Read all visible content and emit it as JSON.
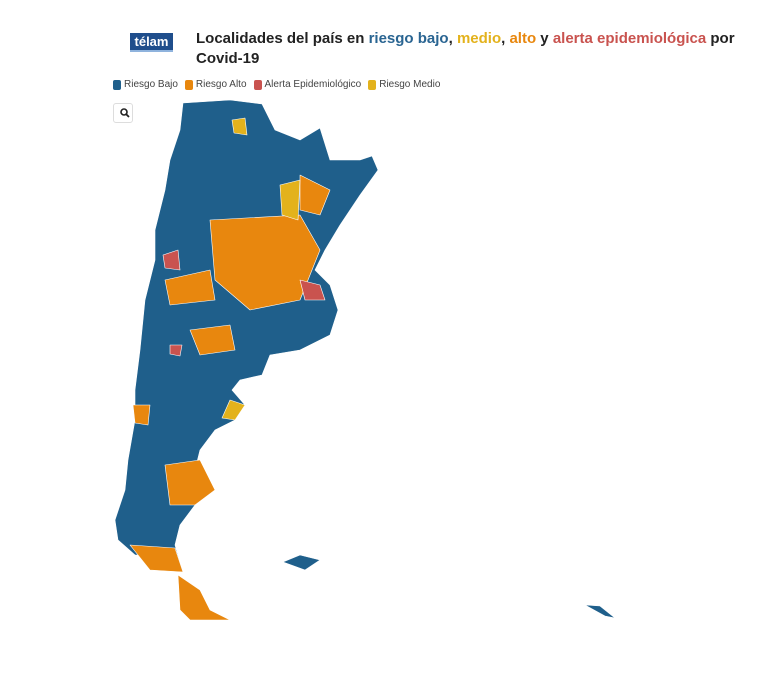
{
  "header": {
    "logo": "télam",
    "title": [
      {
        "text": "Localidades del país en "
      },
      {
        "text": "riesgo bajo",
        "color": "#2a6592"
      },
      {
        "text": ", "
      },
      {
        "text": "medio",
        "color": "#e3b21c"
      },
      {
        "text": ", "
      },
      {
        "text": "alto",
        "color": "#e8870e"
      },
      {
        "text": " y "
      },
      {
        "text": "alerta epidemiológica",
        "color": "#c9534f"
      },
      {
        "text": " por Covid-19"
      }
    ]
  },
  "legend": {
    "items": [
      {
        "label": "Riesgo Bajo",
        "color": "#1f5f8b"
      },
      {
        "label": "Riesgo Alto",
        "color": "#e8870e"
      },
      {
        "label": "Alerta Epidemiológico",
        "color": "#c9534f"
      },
      {
        "label": "Riesgo Medio",
        "color": "#e3b21c"
      }
    ]
  }
}
